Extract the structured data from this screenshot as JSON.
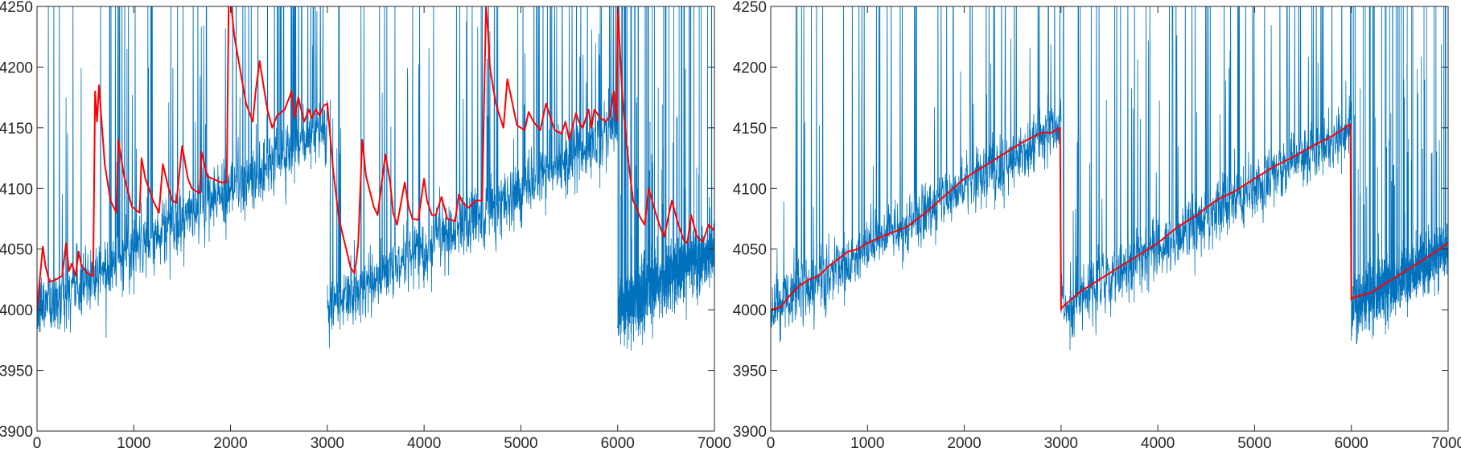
{
  "chart_data": [
    {
      "type": "line",
      "xlim": [
        0,
        7000
      ],
      "ylim": [
        3900,
        4250
      ],
      "xticks": [
        0,
        1000,
        2000,
        3000,
        4000,
        5000,
        6000,
        7000
      ],
      "yticks": [
        3900,
        3950,
        4000,
        4050,
        4100,
        4150,
        4200,
        4250
      ],
      "xtick_labels": [
        "0",
        "1000",
        "2000",
        "3000",
        "4000",
        "5000",
        "6000",
        "7000"
      ],
      "ytick_labels": [
        "3900",
        "3950",
        "4000",
        "4050",
        "4100",
        "4150",
        "4200",
        "4250"
      ],
      "grid": false,
      "legend": "none",
      "series": [
        {
          "style": "noisy-signal",
          "color": "#0072BD",
          "points_per_segment": 1000,
          "segments": [
            {
              "x": [
                0,
                3000
              ],
              "y": [
                4000,
                4150
              ]
            },
            {
              "x": [
                3000,
                6000
              ],
              "y": [
                4000,
                4150
              ]
            },
            {
              "x": [
                6000,
                7000
              ],
              "y": [
                4000,
                4050
              ]
            }
          ],
          "noise_std": 14,
          "spikes_reach": 4250
        },
        {
          "style": "estimate",
          "color": "#FF0000",
          "x": [
            0,
            60,
            90,
            130,
            200,
            260,
            300,
            330,
            360,
            400,
            430,
            460,
            520,
            580,
            600,
            620,
            640,
            700,
            760,
            820,
            840,
            900,
            980,
            1060,
            1080,
            1120,
            1200,
            1260,
            1300,
            1360,
            1400,
            1440,
            1500,
            1560,
            1600,
            1680,
            1700,
            1760,
            1900,
            1960,
            1980,
            2000,
            2040,
            2160,
            2230,
            2260,
            2300,
            2380,
            2430,
            2480,
            2560,
            2630,
            2660,
            2700,
            2760,
            2810,
            2840,
            2880,
            2920,
            2960,
            3000,
            3060,
            3120,
            3180,
            3240,
            3280,
            3300,
            3320,
            3360,
            3400,
            3480,
            3520,
            3600,
            3650,
            3680,
            3720,
            3800,
            3840,
            3880,
            3940,
            4000,
            4030,
            4080,
            4120,
            4180,
            4240,
            4320,
            4360,
            4400,
            4460,
            4530,
            4600,
            4640,
            4660,
            4680,
            4740,
            4820,
            4860,
            4900,
            4960,
            5040,
            5080,
            5130,
            5200,
            5260,
            5300,
            5350,
            5420,
            5460,
            5500,
            5570,
            5600,
            5640,
            5700,
            5730,
            5760,
            5820,
            5880,
            5920,
            5960,
            5990,
            6000,
            6050,
            6100,
            6160,
            6240,
            6280,
            6320,
            6400,
            6440,
            6480,
            6560,
            6620,
            6680,
            6720,
            6760,
            6820,
            6880,
            6940,
            7000
          ],
          "y": [
            4000,
            4052,
            4035,
            4023,
            4025,
            4028,
            4055,
            4032,
            4038,
            4028,
            4048,
            4036,
            4030,
            4028,
            4180,
            4155,
            4185,
            4120,
            4090,
            4080,
            4140,
            4110,
            4085,
            4080,
            4125,
            4108,
            4090,
            4080,
            4120,
            4100,
            4090,
            4088,
            4135,
            4108,
            4100,
            4096,
            4130,
            4110,
            4105,
            4105,
            4250,
            4255,
            4225,
            4170,
            4155,
            4180,
            4205,
            4165,
            4150,
            4160,
            4165,
            4180,
            4158,
            4175,
            4155,
            4165,
            4158,
            4165,
            4160,
            4168,
            4170,
            4115,
            4075,
            4055,
            4035,
            4030,
            4040,
            4055,
            4140,
            4110,
            4085,
            4078,
            4128,
            4105,
            4080,
            4070,
            4105,
            4085,
            4075,
            4074,
            4108,
            4090,
            4078,
            4078,
            4093,
            4075,
            4073,
            4095,
            4088,
            4084,
            4090,
            4090,
            4250,
            4230,
            4200,
            4170,
            4150,
            4190,
            4175,
            4152,
            4148,
            4163,
            4155,
            4148,
            4170,
            4160,
            4148,
            4145,
            4155,
            4140,
            4162,
            4155,
            4150,
            4165,
            4150,
            4165,
            4158,
            4155,
            4160,
            4180,
            4155,
            4250,
            4175,
            4130,
            4090,
            4075,
            4070,
            4100,
            4078,
            4068,
            4060,
            4090,
            4072,
            4058,
            4055,
            4078,
            4060,
            4056,
            4070,
            4065
          ]
        }
      ]
    },
    {
      "type": "line",
      "xlim": [
        0,
        7000
      ],
      "ylim": [
        3900,
        4250
      ],
      "xticks": [
        0,
        1000,
        2000,
        3000,
        4000,
        5000,
        6000,
        7000
      ],
      "yticks": [
        3900,
        3950,
        4000,
        4050,
        4100,
        4150,
        4200,
        4250
      ],
      "xtick_labels": [
        "0",
        "1000",
        "2000",
        "3000",
        "4000",
        "5000",
        "6000",
        "7000"
      ],
      "ytick_labels": [
        "3900",
        "3950",
        "4000",
        "4050",
        "4100",
        "4150",
        "4200",
        "4250"
      ],
      "grid": false,
      "legend": "none",
      "series": [
        {
          "style": "noisy-signal",
          "color": "#0072BD",
          "points_per_segment": 1000,
          "segments": [
            {
              "x": [
                0,
                3000
              ],
              "y": [
                4000,
                4150
              ]
            },
            {
              "x": [
                3000,
                6000
              ],
              "y": [
                4000,
                4150
              ]
            },
            {
              "x": [
                6000,
                7000
              ],
              "y": [
                4000,
                4050
              ]
            }
          ],
          "noise_std": 13,
          "spikes_reach": 4250
        },
        {
          "style": "estimate",
          "color": "#FF0000",
          "x": [
            0,
            100,
            200,
            300,
            400,
            500,
            600,
            700,
            800,
            900,
            1000,
            1200,
            1400,
            1600,
            1800,
            2000,
            2200,
            2400,
            2600,
            2800,
            2900,
            2990,
            3000,
            3010,
            3200,
            3400,
            3600,
            3800,
            4000,
            4200,
            4400,
            4600,
            4800,
            5000,
            5200,
            5400,
            5600,
            5800,
            5990,
            6000,
            6010,
            6200,
            6400,
            6600,
            6800,
            7000
          ],
          "y": [
            4000,
            4002,
            4012,
            4020,
            4025,
            4028,
            4036,
            4042,
            4048,
            4050,
            4055,
            4062,
            4068,
            4080,
            4094,
            4108,
            4118,
            4128,
            4138,
            4146,
            4146,
            4150,
            4000,
            4002,
            4015,
            4025,
            4035,
            4045,
            4055,
            4068,
            4078,
            4090,
            4098,
            4108,
            4118,
            4126,
            4135,
            4143,
            4153,
            4008,
            4010,
            4014,
            4024,
            4034,
            4044,
            4055
          ]
        }
      ]
    }
  ]
}
